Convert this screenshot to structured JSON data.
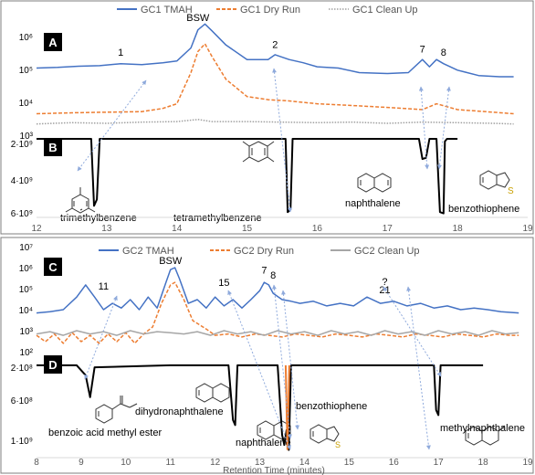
{
  "colors": {
    "tmah": "#4472C4",
    "dry": "#ED7D31",
    "clean": "#A6A6A6",
    "clean_top": "#A0A0A0",
    "ms": "#000000",
    "arrow": "#8FAADC",
    "panel_label_bg": "#000000",
    "frame": "#7F7F7F",
    "grid": "#D9D9D9",
    "sulfur": "#C9A000"
  },
  "chart_data": [
    {
      "id": "A",
      "type": "line",
      "panel_label": "A",
      "legend": [
        "GC1 TMAH",
        "GC1 Dry Run",
        "GC1 Clean Up"
      ],
      "legend_position": "top",
      "y_scale": "log",
      "ylim": [
        1000,
        3000000
      ],
      "yticks": [
        "10³",
        "10⁴",
        "10⁵",
        "10⁶"
      ],
      "xlim": [
        12,
        19
      ],
      "series": [
        {
          "name": "GC1 TMAH",
          "style": "solid",
          "x": [
            12,
            12.3,
            12.6,
            12.9,
            13.2,
            13.5,
            13.8,
            14.0,
            14.2,
            14.3,
            14.4,
            14.5,
            14.7,
            15.0,
            15.3,
            15.4,
            15.6,
            15.8,
            16.0,
            16.3,
            16.6,
            17.0,
            17.3,
            17.5,
            17.6,
            17.7,
            17.8,
            18.0,
            18.3,
            18.6,
            18.8
          ],
          "y": [
            110000,
            115000,
            125000,
            130000,
            150000,
            140000,
            160000,
            180000,
            450000,
            1600000,
            2400000,
            1500000,
            550000,
            200000,
            200000,
            280000,
            200000,
            160000,
            120000,
            110000,
            80000,
            75000,
            80000,
            200000,
            120000,
            200000,
            150000,
            95000,
            65000,
            60000,
            60000
          ]
        },
        {
          "name": "GC1 Dry Run",
          "style": "dashed",
          "x": [
            12,
            12.5,
            13.0,
            13.5,
            13.8,
            14.0,
            14.2,
            14.3,
            14.4,
            14.5,
            14.7,
            15.0,
            15.3,
            15.6,
            16.0,
            16.5,
            17.0,
            17.5,
            17.7,
            18.0,
            18.5,
            18.8
          ],
          "y": [
            4500,
            4800,
            5000,
            5200,
            6500,
            9000,
            80000,
            350000,
            600000,
            250000,
            50000,
            15000,
            12000,
            11000,
            9000,
            8000,
            7000,
            6000,
            9000,
            6000,
            5000,
            4500
          ]
        },
        {
          "name": "GC1 Clean Up",
          "style": "dotted",
          "x": [
            12,
            12.5,
            13.0,
            13.5,
            14.0,
            14.3,
            14.5,
            15.0,
            15.5,
            16.0,
            16.5,
            17.0,
            17.5,
            18.0,
            18.5,
            18.8
          ],
          "y": [
            2200,
            2400,
            2300,
            2500,
            2600,
            3000,
            2600,
            2600,
            2500,
            2400,
            2500,
            2300,
            2500,
            2400,
            2300,
            2200
          ]
        }
      ],
      "peak_labels": [
        {
          "text": "BSW",
          "x": 14.3,
          "y": 2300000
        },
        {
          "text": "1",
          "x": 13.2,
          "y": 200000
        },
        {
          "text": "2",
          "x": 15.4,
          "y": 350000
        },
        {
          "text": "7",
          "x": 17.5,
          "y": 250000
        },
        {
          "text": "8",
          "x": 17.8,
          "y": 200000
        }
      ]
    },
    {
      "id": "B",
      "type": "line",
      "panel_label": "B",
      "y_scale": "linear",
      "ylim": [
        0,
        6000000000
      ],
      "yticks": [
        "2·10⁹",
        "4·10⁹",
        "6·10⁹"
      ],
      "xlim": [
        12,
        19
      ],
      "xticks": [
        "12",
        "13",
        "14",
        "15",
        "16",
        "17",
        "18",
        "19"
      ],
      "series": [
        {
          "name": "",
          "x": [
            12.0,
            12.78,
            12.82,
            12.86,
            12.9,
            15.55,
            15.58,
            15.62,
            15.65,
            17.45,
            17.5,
            17.55,
            17.6,
            17.7,
            17.75,
            17.8,
            17.82,
            17.85,
            17.9,
            18.0
          ],
          "y": [
            0,
            0,
            5300000000,
            4800000000,
            0,
            0,
            5800000000,
            5600000000,
            0,
            0,
            1600000000,
            1500000000,
            0,
            0,
            5800000000,
            5900000000,
            200000000,
            0,
            0,
            0
          ]
        }
      ],
      "compound_labels": [
        "trimethylbenzene",
        "tetramethylbenzene",
        "naphthalene",
        "benzothiophene"
      ]
    },
    {
      "id": "C",
      "type": "line",
      "panel_label": "C",
      "legend": [
        "GC2 TMAH",
        "GC2 Dry Run",
        "GC2 Clean Up"
      ],
      "legend_position": "top",
      "y_scale": "log",
      "ylim": [
        100,
        10000000
      ],
      "yticks": [
        "10²",
        "10³",
        "10⁴",
        "10⁵",
        "10⁶",
        "10⁷"
      ],
      "xlim": [
        8,
        19
      ],
      "series": [
        {
          "name": "GC2 TMAH",
          "style": "solid",
          "x": [
            8.0,
            8.3,
            8.6,
            8.9,
            9.1,
            9.3,
            9.5,
            9.7,
            9.9,
            10.1,
            10.3,
            10.5,
            10.7,
            10.9,
            11.0,
            11.1,
            11.2,
            11.4,
            11.6,
            11.8,
            12.0,
            12.2,
            12.4,
            12.6,
            12.8,
            13.0,
            13.1,
            13.2,
            13.3,
            13.5,
            13.7,
            13.9,
            14.2,
            14.5,
            14.8,
            15.1,
            15.4,
            15.7,
            16.0,
            16.3,
            16.6,
            16.9,
            17.2,
            17.5,
            17.8,
            18.1,
            18.4,
            18.8
          ],
          "y": [
            7000,
            8000,
            10000,
            40000,
            150000,
            40000,
            10000,
            20000,
            12000,
            30000,
            10000,
            40000,
            12000,
            200000,
            800000,
            1000000,
            300000,
            20000,
            30000,
            12000,
            40000,
            15000,
            30000,
            12000,
            30000,
            80000,
            200000,
            150000,
            60000,
            30000,
            25000,
            20000,
            25000,
            15000,
            20000,
            15000,
            40000,
            20000,
            25000,
            15000,
            20000,
            12000,
            15000,
            10000,
            12000,
            10000,
            8000,
            7000
          ]
        },
        {
          "name": "GC2 Dry Run",
          "style": "dashed",
          "x": [
            8.0,
            8.2,
            8.4,
            8.6,
            8.8,
            9.0,
            9.2,
            9.4,
            9.6,
            9.8,
            10.0,
            10.2,
            10.4,
            10.6,
            10.8,
            11.0,
            11.1,
            11.3,
            11.5,
            11.8,
            12.0,
            12.3,
            12.6,
            12.9,
            13.2,
            13.5,
            13.8,
            14.1,
            14.4,
            14.7,
            15.0,
            15.3,
            15.6,
            15.9,
            16.2,
            16.5,
            16.8,
            17.1,
            17.4,
            17.7,
            18.0,
            18.3,
            18.6,
            18.8
          ],
          "y": [
            600,
            300,
            700,
            250,
            800,
            300,
            600,
            250,
            700,
            300,
            800,
            250,
            700,
            1500,
            20000,
            150000,
            200000,
            30000,
            3000,
            1200,
            600,
            700,
            500,
            700,
            600,
            500,
            700,
            600,
            500,
            700,
            600,
            500,
            700,
            600,
            500,
            700,
            600,
            500,
            700,
            600,
            500,
            700,
            600,
            600
          ]
        },
        {
          "name": "GC2 Clean Up",
          "style": "solid",
          "x": [
            8.0,
            8.3,
            8.6,
            8.9,
            9.2,
            9.5,
            9.8,
            10.1,
            10.4,
            10.7,
            11.0,
            11.3,
            11.6,
            11.9,
            12.2,
            12.5,
            12.8,
            13.1,
            13.4,
            13.7,
            14.0,
            14.3,
            14.6,
            14.9,
            15.2,
            15.5,
            15.8,
            16.1,
            16.4,
            16.7,
            17.0,
            17.3,
            17.6,
            17.9,
            18.2,
            18.5,
            18.8
          ],
          "y": [
            700,
            900,
            600,
            1000,
            700,
            900,
            600,
            1000,
            700,
            900,
            800,
            700,
            900,
            600,
            1000,
            700,
            900,
            600,
            1000,
            700,
            900,
            600,
            1000,
            700,
            900,
            600,
            1000,
            700,
            900,
            600,
            1000,
            700,
            900,
            600,
            1000,
            700,
            800
          ]
        }
      ],
      "peak_labels": [
        {
          "text": "BSW",
          "x": 11.0,
          "y": 1000000
        },
        {
          "text": "11",
          "x": 9.5,
          "y": 60000
        },
        {
          "text": "15",
          "x": 12.2,
          "y": 90000
        },
        {
          "text": "7",
          "x": 13.1,
          "y": 350000
        },
        {
          "text": "8",
          "x": 13.3,
          "y": 200000
        },
        {
          "text": "?",
          "x": 15.8,
          "y": 100000
        },
        {
          "text": "21",
          "x": 15.8,
          "y": 40000
        }
      ]
    },
    {
      "id": "D",
      "type": "line",
      "panel_label": "D",
      "y_scale": "linear",
      "ylim": [
        0,
        1000000000
      ],
      "yticks": [
        "2·10⁸",
        "6·10⁸",
        "1·10⁹"
      ],
      "xlim": [
        8,
        19
      ],
      "xticks": [
        "8",
        "9",
        "10",
        "11",
        "12",
        "13",
        "14",
        "15",
        "16",
        "17",
        "18",
        "19"
      ],
      "xlabel": "Retention Time (minutes)",
      "series": [
        {
          "name": "",
          "x": [
            8.0,
            8.9,
            9.1,
            9.2,
            9.3,
            11.0,
            12.3,
            12.4,
            12.45,
            12.5,
            13.4,
            13.5,
            13.55,
            13.6,
            13.65,
            13.7,
            16.9,
            16.95,
            17.0,
            17.05,
            18.0
          ],
          "y": [
            100000000,
            100000000,
            200000000,
            420000000,
            120000000,
            100000000,
            100000000,
            650000000,
            700000000,
            100000000,
            100000000,
            800000000,
            900000000,
            750000000,
            950000000,
            100000000,
            100000000,
            550000000,
            600000000,
            100000000,
            100000000
          ]
        }
      ],
      "compound_labels": [
        "benzoic acid methyl ester",
        "dihydronaphthalene",
        "naphthalene",
        "benzothiophene",
        "methylnaphthalene"
      ]
    }
  ]
}
